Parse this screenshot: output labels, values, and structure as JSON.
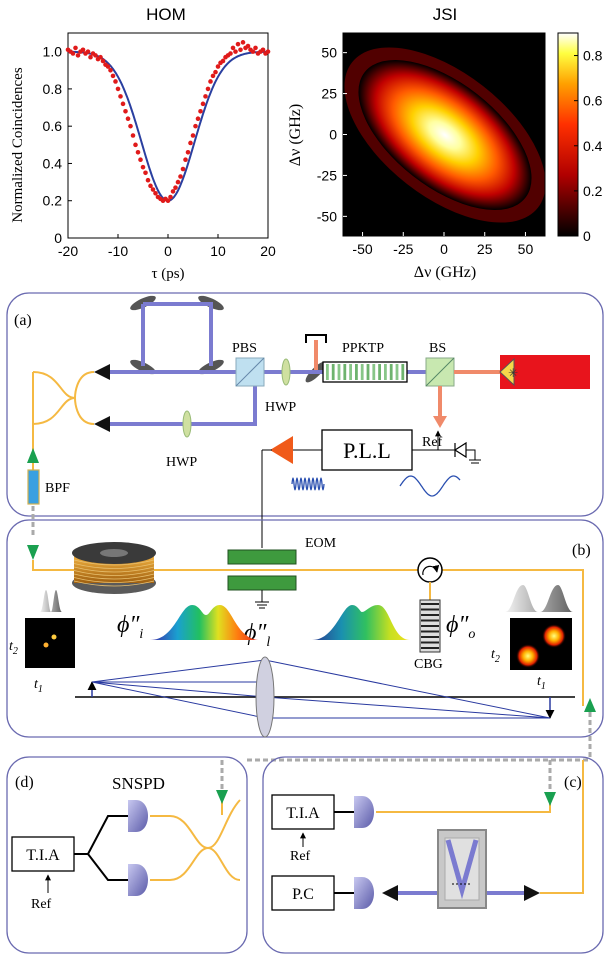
{
  "hom": {
    "title": "HOM",
    "ylabel": "Normalized Coincidences",
    "xlabel": "τ (ps)",
    "yticks": [
      "0",
      "0.2",
      "0.4",
      "0.6",
      "0.8",
      "1.0"
    ],
    "xticks": [
      "-20",
      "-10",
      "0",
      "10",
      "20"
    ]
  },
  "jsi": {
    "title": "JSI",
    "ylabel": "Δν (GHz)",
    "xlabel": "Δν (GHz)",
    "xticks": [
      "-50",
      "-25",
      "0",
      "25",
      "50"
    ],
    "yticks": [
      "50",
      "25",
      "0",
      "-25",
      "-50"
    ],
    "cticks": [
      "0.8",
      "0.6",
      "0.4",
      "0.2",
      "0"
    ]
  },
  "chart_data": [
    {
      "type": "scatter",
      "title": "HOM",
      "xlabel": "τ (ps)",
      "ylabel": "Normalized Coincidences",
      "xlim": [
        -20,
        20
      ],
      "ylim": [
        0,
        1.1
      ],
      "series": [
        {
          "x": [
            -20,
            -19.5,
            -19,
            -18.5,
            -18,
            -17.5,
            -17,
            -16.5,
            -16,
            -15.5,
            -15,
            -14.5,
            -14,
            -13.5,
            -13,
            -12.5,
            -12,
            -11.5,
            -11,
            -10.5,
            -10,
            -9.5,
            -9,
            -8.5,
            -8,
            -7.5,
            -7,
            -6.5,
            -6,
            -5.5,
            -5,
            -4.5,
            -4,
            -3.5,
            -3,
            -2.5,
            -2,
            -1.5,
            -1,
            -0.5,
            0,
            0.5,
            1,
            1.5,
            2,
            2.5,
            3,
            3.5,
            4,
            4.5,
            5,
            5.5,
            6,
            6.5,
            7,
            7.5,
            8,
            8.5,
            9,
            9.5,
            10,
            10.5,
            11,
            11.5,
            12,
            12.5,
            13,
            13.5,
            14,
            14.5,
            15,
            15.5,
            16,
            16.5,
            17,
            17.5,
            18,
            18.5,
            19,
            19.5,
            20
          ],
          "y": [
            1.01,
            1.0,
            0.99,
            1.02,
            0.98,
            1.0,
            1.01,
            0.99,
            1.0,
            0.97,
            0.99,
            0.98,
            0.96,
            0.97,
            0.95,
            0.93,
            0.92,
            0.9,
            0.87,
            0.84,
            0.8,
            0.76,
            0.72,
            0.68,
            0.64,
            0.6,
            0.55,
            0.5,
            0.46,
            0.42,
            0.38,
            0.35,
            0.31,
            0.28,
            0.26,
            0.24,
            0.22,
            0.21,
            0.2,
            0.21,
            0.2,
            0.22,
            0.25,
            0.27,
            0.3,
            0.33,
            0.37,
            0.42,
            0.46,
            0.51,
            0.55,
            0.6,
            0.64,
            0.68,
            0.72,
            0.76,
            0.8,
            0.84,
            0.87,
            0.89,
            0.92,
            0.94,
            0.95,
            0.97,
            0.98,
            0.99,
            1.02,
            1.0,
            1.04,
            1.01,
            1.05,
            1.02,
            1.03,
            1.01,
            1.0,
            1.02,
            0.99,
            1.0,
            1.01,
            0.99,
            1.0
          ]
        }
      ],
      "fit": {
        "y0": 0.2,
        "ymax": 1.0,
        "center": 0,
        "width_ps": 7.5
      }
    },
    {
      "type": "heatmap",
      "title": "JSI",
      "xlabel": "Δν (GHz)",
      "ylabel": "Δν (GHz)",
      "xlim": [
        -62,
        62
      ],
      "ylim": [
        -62,
        62
      ],
      "clim": [
        0,
        0.9
      ],
      "colormap": "hot",
      "peak": {
        "x": 0,
        "y": 0,
        "value": 0.9
      },
      "anticorrelated": true
    }
  ],
  "panels": {
    "a": {
      "tag": "(a)",
      "pbs": "PBS",
      "hwp1": "HWP",
      "hwp2": "HWP",
      "ppktp": "PPKTP",
      "bs": "BS",
      "ref": "Ref",
      "pll": "P.L.L",
      "bpf": "BPF"
    },
    "b": {
      "tag": "(b)",
      "eom": "EOM",
      "cbg": "CBG",
      "phi_i": "ϕ″",
      "phi_i_sub": "i",
      "phi_l": "ϕ″",
      "phi_l_sub": "l",
      "phi_o": "ϕ″",
      "phi_o_sub": "o",
      "t1": "t",
      "t1_sub": "1",
      "t2": "t",
      "t2_sub": "2"
    },
    "c": {
      "tag": "(c)",
      "tia": "T.I.A",
      "ref": "Ref",
      "pc": "P.C"
    },
    "d": {
      "tag": "(d)",
      "snspd": "SNSPD",
      "tia": "T.I.A",
      "ref": "Ref"
    }
  },
  "colors": {
    "fiber": "#f5b942",
    "beam": "#7b7bd0",
    "pump": "#f08a6a",
    "panel_border": "#6a6ab0",
    "laser": "#e8141c",
    "fit": "#2a3fa0",
    "points": "#e01a1a"
  }
}
